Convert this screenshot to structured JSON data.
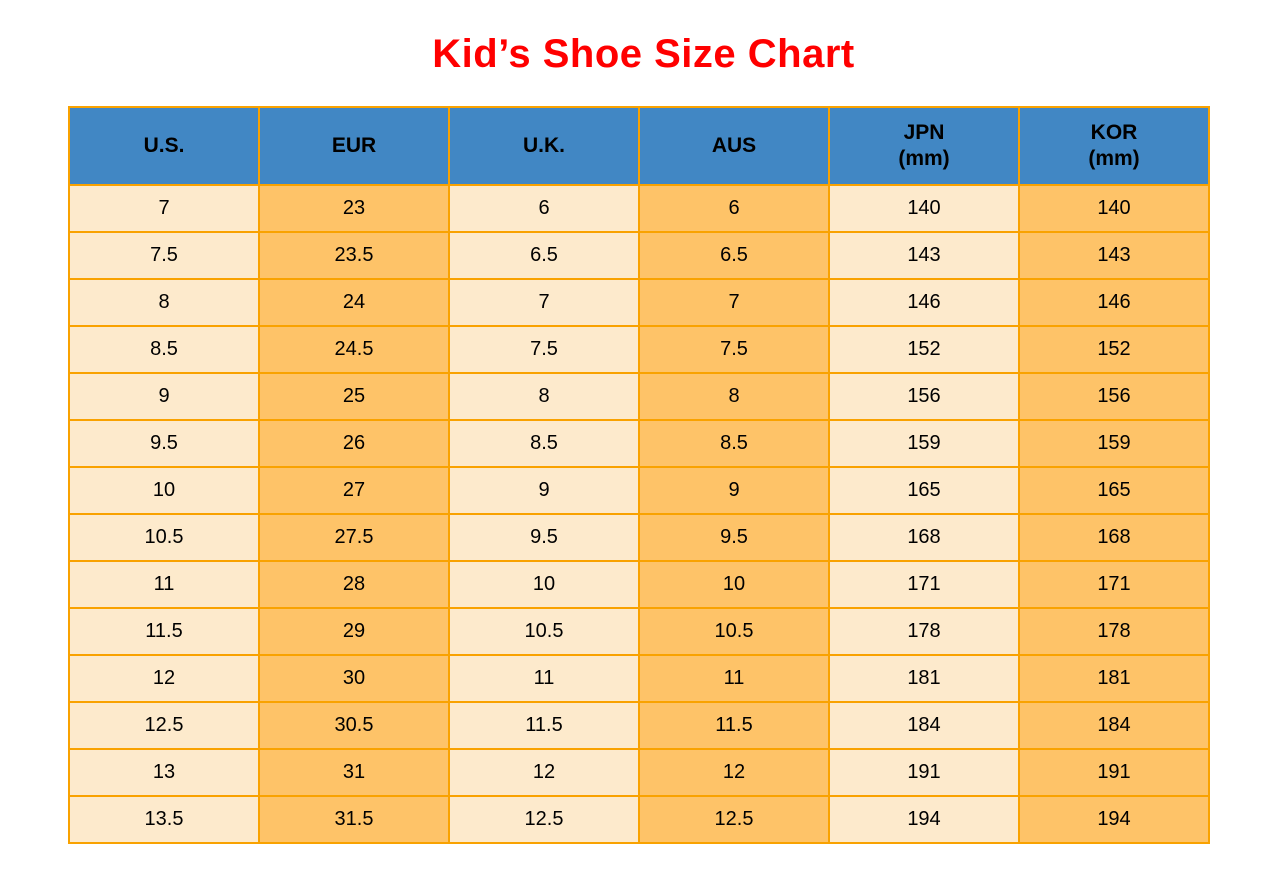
{
  "page": {
    "title": "Kid’s Shoe Size Chart"
  },
  "colors": {
    "background": "#FFFFFF",
    "title": "#FF0000",
    "header_bg": "#4187C4",
    "header_text": "#000000",
    "cell_cream": "#FDEACC",
    "cell_orange": "#FEC368",
    "border": "#F9A200",
    "cell_text": "#000000"
  },
  "chart_data": {
    "type": "table",
    "title": "Kid’s Shoe Size Chart",
    "columns": [
      {
        "label": "U.S.",
        "sublabel": ""
      },
      {
        "label": "EUR",
        "sublabel": ""
      },
      {
        "label": "U.K.",
        "sublabel": ""
      },
      {
        "label": "AUS",
        "sublabel": ""
      },
      {
        "label": "JPN",
        "sublabel": "(mm)"
      },
      {
        "label": "KOR",
        "sublabel": "(mm)"
      }
    ],
    "rows": [
      [
        "7",
        "23",
        "6",
        "6",
        "140",
        "140"
      ],
      [
        "7.5",
        "23.5",
        "6.5",
        "6.5",
        "143",
        "143"
      ],
      [
        "8",
        "24",
        "7",
        "7",
        "146",
        "146"
      ],
      [
        "8.5",
        "24.5",
        "7.5",
        "7.5",
        "152",
        "152"
      ],
      [
        "9",
        "25",
        "8",
        "8",
        "156",
        "156"
      ],
      [
        "9.5",
        "26",
        "8.5",
        "8.5",
        "159",
        "159"
      ],
      [
        "10",
        "27",
        "9",
        "9",
        "165",
        "165"
      ],
      [
        "10.5",
        "27.5",
        "9.5",
        "9.5",
        "168",
        "168"
      ],
      [
        "11",
        "28",
        "10",
        "10",
        "171",
        "171"
      ],
      [
        "11.5",
        "29",
        "10.5",
        "10.5",
        "178",
        "178"
      ],
      [
        "12",
        "30",
        "11",
        "11",
        "181",
        "181"
      ],
      [
        "12.5",
        "30.5",
        "11.5",
        "11.5",
        "184",
        "184"
      ],
      [
        "13",
        "31",
        "12",
        "12",
        "191",
        "191"
      ],
      [
        "13.5",
        "31.5",
        "12.5",
        "12.5",
        "194",
        "194"
      ]
    ]
  }
}
